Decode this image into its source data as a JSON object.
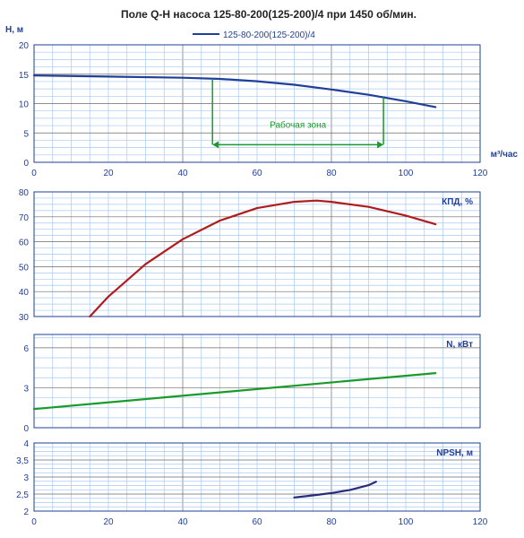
{
  "chart_data": [
    {
      "type": "line",
      "title": "Поле Q-H насоса 125-80-200(125-200)/4 при 1450 об/мин.",
      "ylabel": "H, м",
      "xlabel": "м³/час",
      "xlim": [
        0,
        120
      ],
      "ylim": [
        0,
        20
      ],
      "x_ticks": [
        0,
        20,
        40,
        60,
        80,
        100,
        120
      ],
      "y_ticks": [
        0,
        5,
        10,
        15,
        20
      ],
      "grid": true,
      "legend_position": "top-center",
      "series": [
        {
          "name": "125-80-200(125-200)/4",
          "color": "#1f3f99",
          "x": [
            0,
            20,
            40,
            50,
            60,
            70,
            80,
            90,
            100,
            108
          ],
          "y": [
            14.8,
            14.6,
            14.4,
            14.2,
            13.8,
            13.2,
            12.4,
            11.5,
            10.4,
            9.4
          ]
        }
      ],
      "annotations": [
        {
          "text": "Рабочая зона",
          "x_range": [
            48,
            94
          ],
          "y": 3,
          "color": "#1a9a2a"
        }
      ]
    },
    {
      "type": "line",
      "title": "",
      "ylabel": "КПД, %",
      "xlim": [
        0,
        120
      ],
      "ylim": [
        30,
        80
      ],
      "y_ticks": [
        30,
        40,
        50,
        60,
        70,
        80
      ],
      "grid": true,
      "series": [
        {
          "name": "",
          "color": "#b01c1c",
          "x": [
            15,
            20,
            30,
            40,
            50,
            60,
            70,
            76,
            80,
            90,
            100,
            108
          ],
          "y": [
            30,
            38,
            51,
            61,
            68.5,
            73.5,
            76,
            76.5,
            76,
            74,
            70.5,
            67
          ]
        }
      ]
    },
    {
      "type": "line",
      "title": "",
      "ylabel": "N, кВт",
      "xlim": [
        0,
        120
      ],
      "ylim": [
        0,
        7
      ],
      "y_ticks": [
        0,
        3,
        6
      ],
      "grid": true,
      "series": [
        {
          "name": "",
          "color": "#1a9a2a",
          "x": [
            0,
            108
          ],
          "y": [
            1.4,
            4.1
          ]
        }
      ]
    },
    {
      "type": "line",
      "title": "",
      "ylabel": "NPSH, м",
      "xlabel": "",
      "xlim": [
        0,
        120
      ],
      "ylim": [
        2,
        4
      ],
      "x_ticks": [
        0,
        20,
        40,
        60,
        80,
        100,
        120
      ],
      "y_ticks": [
        2,
        2.5,
        3,
        3.5,
        4
      ],
      "y_tick_labels": [
        "2",
        "2,5",
        "3",
        "3,5",
        "4"
      ],
      "grid": true,
      "series": [
        {
          "name": "",
          "color": "#2a2a7a",
          "x": [
            70,
            75,
            80,
            85,
            90,
            92
          ],
          "y": [
            2.4,
            2.46,
            2.53,
            2.62,
            2.76,
            2.86
          ]
        }
      ]
    }
  ]
}
